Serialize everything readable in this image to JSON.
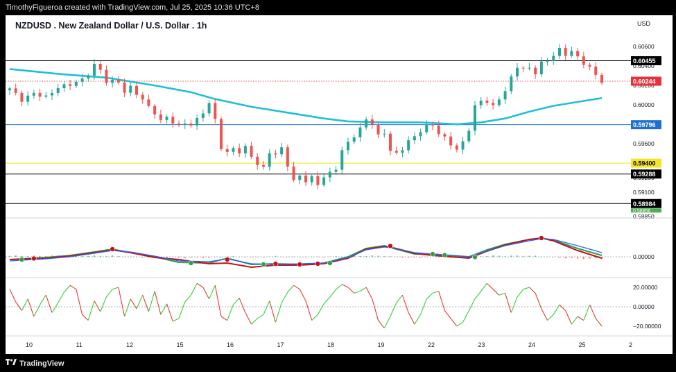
{
  "header": {
    "attribution": "TimothyFigueroa created with TradingView.com, Jul 25, 2025 10:36 UTC+8"
  },
  "footer": {
    "brand": "TradingView",
    "brand_icon": "tradingview-logo-icon"
  },
  "chart_data": [
    {
      "type": "candlestick",
      "title": "NZDUSD . New Zealand Dollar / U.S. Dollar . 1h",
      "currency_label": "USD",
      "y_ticks": [
        "0.60600",
        "0.60400",
        "0.60200",
        "0.60000",
        "0.59600",
        "0.59250",
        "0.59100",
        "0.58850"
      ],
      "y_tick_values": [
        0.606,
        0.604,
        0.602,
        0.6,
        0.596,
        0.5925,
        0.591,
        0.5885
      ],
      "ylim": [
        0.5885,
        0.6078
      ],
      "x_ticks": [
        "10",
        "11",
        "12",
        "15",
        "16",
        "17",
        "18",
        "19",
        "22",
        "23",
        "24",
        "25",
        "2"
      ],
      "close_path": [
        [
          0,
          0.6017
        ],
        [
          2,
          0.6005
        ],
        [
          4,
          0.6012
        ],
        [
          6,
          0.6008
        ],
        [
          8,
          0.6018
        ],
        [
          10,
          0.6021
        ],
        [
          12,
          0.6026
        ],
        [
          13,
          0.6032
        ],
        [
          14,
          0.6041
        ],
        [
          15,
          0.6036
        ],
        [
          16,
          0.6024
        ],
        [
          18,
          0.6024
        ],
        [
          19,
          0.6013
        ],
        [
          20,
          0.6018
        ],
        [
          21,
          0.6012
        ],
        [
          22,
          0.6005
        ],
        [
          23,
          0.5998
        ],
        [
          24,
          0.5992
        ],
        [
          25,
          0.5983
        ],
        [
          26,
          0.5988
        ],
        [
          27,
          0.5982
        ],
        [
          28,
          0.5978
        ],
        [
          29,
          0.5982
        ],
        [
          30,
          0.5979
        ],
        [
          31,
          0.5985
        ],
        [
          32,
          0.5993
        ],
        [
          33,
          0.6001
        ],
        [
          34,
          0.5985
        ],
        [
          35,
          0.5956
        ],
        [
          36,
          0.595
        ],
        [
          37,
          0.5956
        ],
        [
          38,
          0.5951
        ],
        [
          39,
          0.5956
        ],
        [
          40,
          0.5948
        ],
        [
          41,
          0.5938
        ],
        [
          42,
          0.5935
        ],
        [
          43,
          0.5952
        ],
        [
          44,
          0.5948
        ],
        [
          45,
          0.5956
        ],
        [
          46,
          0.5938
        ],
        [
          47,
          0.5921
        ],
        [
          48,
          0.5928
        ],
        [
          49,
          0.5921
        ],
        [
          50,
          0.5925
        ],
        [
          51,
          0.5919
        ],
        [
          52,
          0.5925
        ],
        [
          53,
          0.593
        ],
        [
          54,
          0.5935
        ],
        [
          55,
          0.5952
        ],
        [
          56,
          0.5962
        ],
        [
          57,
          0.5968
        ],
        [
          58,
          0.5975
        ],
        [
          59,
          0.5986
        ],
        [
          60,
          0.598
        ],
        [
          61,
          0.5968
        ],
        [
          62,
          0.5972
        ],
        [
          63,
          0.5952
        ],
        [
          64,
          0.595
        ],
        [
          65,
          0.5955
        ],
        [
          66,
          0.5962
        ],
        [
          67,
          0.5968
        ],
        [
          68,
          0.5973
        ],
        [
          69,
          0.5978
        ],
        [
          70,
          0.598
        ],
        [
          71,
          0.597
        ],
        [
          72,
          0.5966
        ],
        [
          73,
          0.596
        ],
        [
          74,
          0.5953
        ],
        [
          75,
          0.5962
        ],
        [
          76,
          0.5975
        ],
        [
          77,
          0.5998
        ],
        [
          78,
          0.6005
        ],
        [
          79,
          0.6003
        ],
        [
          80,
          0.5998
        ],
        [
          81,
          0.6007
        ],
        [
          82,
          0.6014
        ],
        [
          83,
          0.6028
        ],
        [
          84,
          0.604
        ],
        [
          85,
          0.6037
        ],
        [
          86,
          0.6038
        ],
        [
          87,
          0.6033
        ],
        [
          88,
          0.6043
        ],
        [
          89,
          0.6046
        ],
        [
          90,
          0.6051
        ],
        [
          91,
          0.6057
        ],
        [
          92,
          0.6052
        ],
        [
          93,
          0.6055
        ],
        [
          94,
          0.6049
        ],
        [
          95,
          0.6043
        ],
        [
          96,
          0.6038
        ],
        [
          97,
          0.6031
        ],
        [
          98,
          0.6024
        ]
      ],
      "series": [
        {
          "name": "",
          "type": "moving-average",
          "color": "#1fbfd6",
          "path": [
            [
              0,
              0.6037
            ],
            [
              8,
              0.6032
            ],
            [
              16,
              0.6028
            ],
            [
              24,
              0.602
            ],
            [
              30,
              0.6013
            ],
            [
              34,
              0.6006
            ],
            [
              40,
              0.5998
            ],
            [
              46,
              0.5992
            ],
            [
              52,
              0.5986
            ],
            [
              56,
              0.5983
            ],
            [
              62,
              0.5982
            ],
            [
              68,
              0.5982
            ],
            [
              74,
              0.598
            ],
            [
              78,
              0.5982
            ],
            [
              82,
              0.5986
            ],
            [
              86,
              0.5993
            ],
            [
              90,
              0.5999
            ],
            [
              94,
              0.6003
            ],
            [
              98,
              0.6007
            ]
          ]
        }
      ],
      "horizontal_levels": [
        {
          "value": 0.60455,
          "label": "0.60455",
          "line_color": "#000000",
          "label_bg": "#000000",
          "label_color": "#ffffff"
        },
        {
          "value": 0.60244,
          "label": "0.60244",
          "line_color": "#e05050",
          "label_bg": "#e8313a",
          "label_color": "#ffffff",
          "style": "dotted"
        },
        {
          "value": 0.59796,
          "label": "0.59796",
          "line_color": "#1e6fd0",
          "label_bg": "#1e6fd0",
          "label_color": "#ffffff"
        },
        {
          "value": 0.594,
          "label": "0.59400",
          "line_color": "#f5e52a",
          "label_bg": "#f5e52a",
          "label_color": "#000000"
        },
        {
          "value": 0.59288,
          "label": "0.59288",
          "line_color": "#000000",
          "label_bg": "#000000",
          "label_color": "#ffffff"
        },
        {
          "value": 0.58984,
          "label": "0.58984",
          "line_color": "#000000",
          "label_bg": "#000000",
          "label_color": "#ffffff"
        }
      ],
      "partial_label": "0.58856",
      "grid": false,
      "colors": {
        "up": "#26a69a",
        "down": "#ef5350"
      }
    },
    {
      "type": "line",
      "panel": "oscillator-1",
      "y_ticks": [
        "0.00000"
      ],
      "zero_line": true,
      "series": [
        {
          "name": "",
          "color": "#2ea043",
          "path": [
            [
              0,
              -0.2
            ],
            [
              6,
              -0.05
            ],
            [
              10,
              0.1
            ],
            [
              14,
              0.35
            ],
            [
              17,
              0.55
            ],
            [
              20,
              0.3
            ],
            [
              24,
              0.0
            ],
            [
              28,
              -0.4
            ],
            [
              33,
              -0.45
            ],
            [
              36,
              -0.1
            ],
            [
              40,
              -0.55
            ],
            [
              44,
              -0.5
            ],
            [
              48,
              -0.55
            ],
            [
              52,
              -0.45
            ],
            [
              56,
              0.0
            ],
            [
              59,
              0.6
            ],
            [
              62,
              0.8
            ],
            [
              64,
              0.55
            ],
            [
              67,
              0.2
            ],
            [
              70,
              0.2
            ],
            [
              73,
              0.1
            ],
            [
              76,
              0.0
            ],
            [
              79,
              0.5
            ],
            [
              82,
              0.9
            ],
            [
              86,
              1.25
            ],
            [
              88,
              1.35
            ],
            [
              90,
              1.2
            ],
            [
              94,
              0.6
            ],
            [
              98,
              0.1
            ]
          ]
        },
        {
          "name": "",
          "color": "#c0121a",
          "path": [
            [
              0,
              -0.2
            ],
            [
              6,
              -0.1
            ],
            [
              10,
              0.05
            ],
            [
              14,
              0.3
            ],
            [
              17,
              0.5
            ],
            [
              20,
              0.3
            ],
            [
              24,
              -0.05
            ],
            [
              28,
              -0.2
            ],
            [
              33,
              -0.5
            ],
            [
              36,
              -0.45
            ],
            [
              40,
              -0.75
            ],
            [
              44,
              -0.6
            ],
            [
              48,
              -0.6
            ],
            [
              52,
              -0.5
            ],
            [
              56,
              -0.1
            ],
            [
              59,
              0.55
            ],
            [
              62,
              0.75
            ],
            [
              64,
              0.6
            ],
            [
              67,
              0.25
            ],
            [
              70,
              0.1
            ],
            [
              73,
              0.0
            ],
            [
              76,
              -0.1
            ],
            [
              79,
              0.4
            ],
            [
              82,
              0.85
            ],
            [
              86,
              1.25
            ],
            [
              88,
              1.35
            ],
            [
              90,
              1.15
            ],
            [
              94,
              0.45
            ],
            [
              98,
              -0.1
            ]
          ]
        },
        {
          "name": "",
          "color": "#2962ff",
          "path": [
            [
              0,
              -0.3
            ],
            [
              6,
              -0.15
            ],
            [
              10,
              0.0
            ],
            [
              14,
              0.25
            ],
            [
              17,
              0.45
            ],
            [
              20,
              0.35
            ],
            [
              24,
              0.05
            ],
            [
              28,
              -0.3
            ],
            [
              33,
              -0.35
            ],
            [
              36,
              -0.15
            ],
            [
              40,
              -0.5
            ],
            [
              44,
              -0.55
            ],
            [
              48,
              -0.5
            ],
            [
              52,
              -0.45
            ],
            [
              56,
              -0.05
            ],
            [
              59,
              0.5
            ],
            [
              62,
              0.7
            ],
            [
              64,
              0.6
            ],
            [
              67,
              0.3
            ],
            [
              70,
              0.2
            ],
            [
              73,
              0.1
            ],
            [
              76,
              0.0
            ],
            [
              79,
              0.4
            ],
            [
              82,
              0.8
            ],
            [
              86,
              1.15
            ],
            [
              88,
              1.3
            ],
            [
              90,
              1.25
            ],
            [
              94,
              0.8
            ],
            [
              98,
              0.3
            ]
          ]
        }
      ]
    },
    {
      "type": "line",
      "panel": "oscillator-2",
      "y_ticks": [
        "20.00000",
        "0.00000",
        "−20.00000"
      ],
      "y_tick_values": [
        20,
        0,
        -20
      ],
      "ylim": [
        -25,
        25
      ],
      "series": [
        {
          "name": "",
          "color_up": "#32d032",
          "color_down": "#e53935",
          "values": [
            18,
            5,
            -4,
            8,
            -10,
            2,
            12,
            -6,
            4,
            15,
            22,
            18,
            -8,
            -14,
            6,
            -5,
            10,
            18,
            20,
            -10,
            8,
            -2,
            12,
            -5,
            16,
            -8,
            3,
            -15,
            -12,
            5,
            12,
            24,
            20,
            8,
            22,
            -10,
            -14,
            2,
            9,
            -6,
            -18,
            -12,
            -8,
            6,
            -16,
            4,
            15,
            22,
            18,
            6,
            -14,
            -8,
            3,
            10,
            18,
            23,
            20,
            14,
            16,
            20,
            8,
            -14,
            -22,
            -10,
            4,
            12,
            -6,
            -18,
            -8,
            8,
            14,
            16,
            -4,
            -12,
            -20,
            -16,
            -4,
            8,
            16,
            24,
            18,
            12,
            14,
            -6,
            10,
            18,
            20,
            14,
            -2,
            -14,
            -8,
            2,
            -4,
            -18,
            -10,
            -14,
            2,
            -12,
            -20
          ]
        }
      ]
    }
  ]
}
